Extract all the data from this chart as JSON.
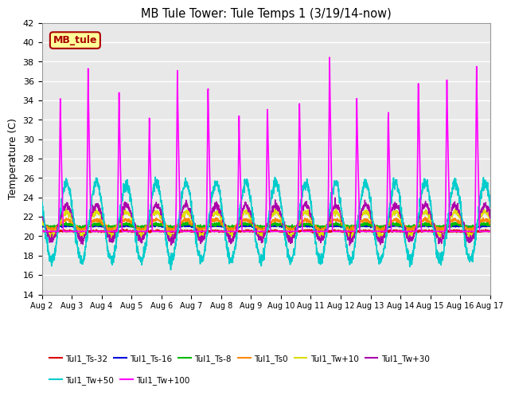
{
  "title": "MB Tule Tower: Tule Temps 1 (3/19/14-now)",
  "ylabel": "Temperature (C)",
  "ylim": [
    14,
    42
  ],
  "yticks": [
    14,
    16,
    18,
    20,
    22,
    24,
    26,
    28,
    30,
    32,
    34,
    36,
    38,
    40,
    42
  ],
  "n_days": 15,
  "series": [
    {
      "label": "Tul1_Ts-32",
      "color": "#dd0000"
    },
    {
      "label": "Tul1_Ts-16",
      "color": "#0000dd"
    },
    {
      "label": "Tul1_Ts-8",
      "color": "#00bb00"
    },
    {
      "label": "Tul1_Ts0",
      "color": "#ff8800"
    },
    {
      "label": "Tul1_Tw+10",
      "color": "#dddd00"
    },
    {
      "label": "Tul1_Tw+30",
      "color": "#aa00aa"
    },
    {
      "label": "Tul1_Tw+50",
      "color": "#00cccc"
    },
    {
      "label": "Tul1_Tw+100",
      "color": "#ff00ff"
    }
  ],
  "legend_box_label": "MB_tule",
  "legend_box_facecolor": "#ffff99",
  "legend_box_edgecolor": "#aa0000",
  "background_color": "#ffffff",
  "plot_bg_color": "#e8e8e8",
  "grid_color": "#ffffff"
}
